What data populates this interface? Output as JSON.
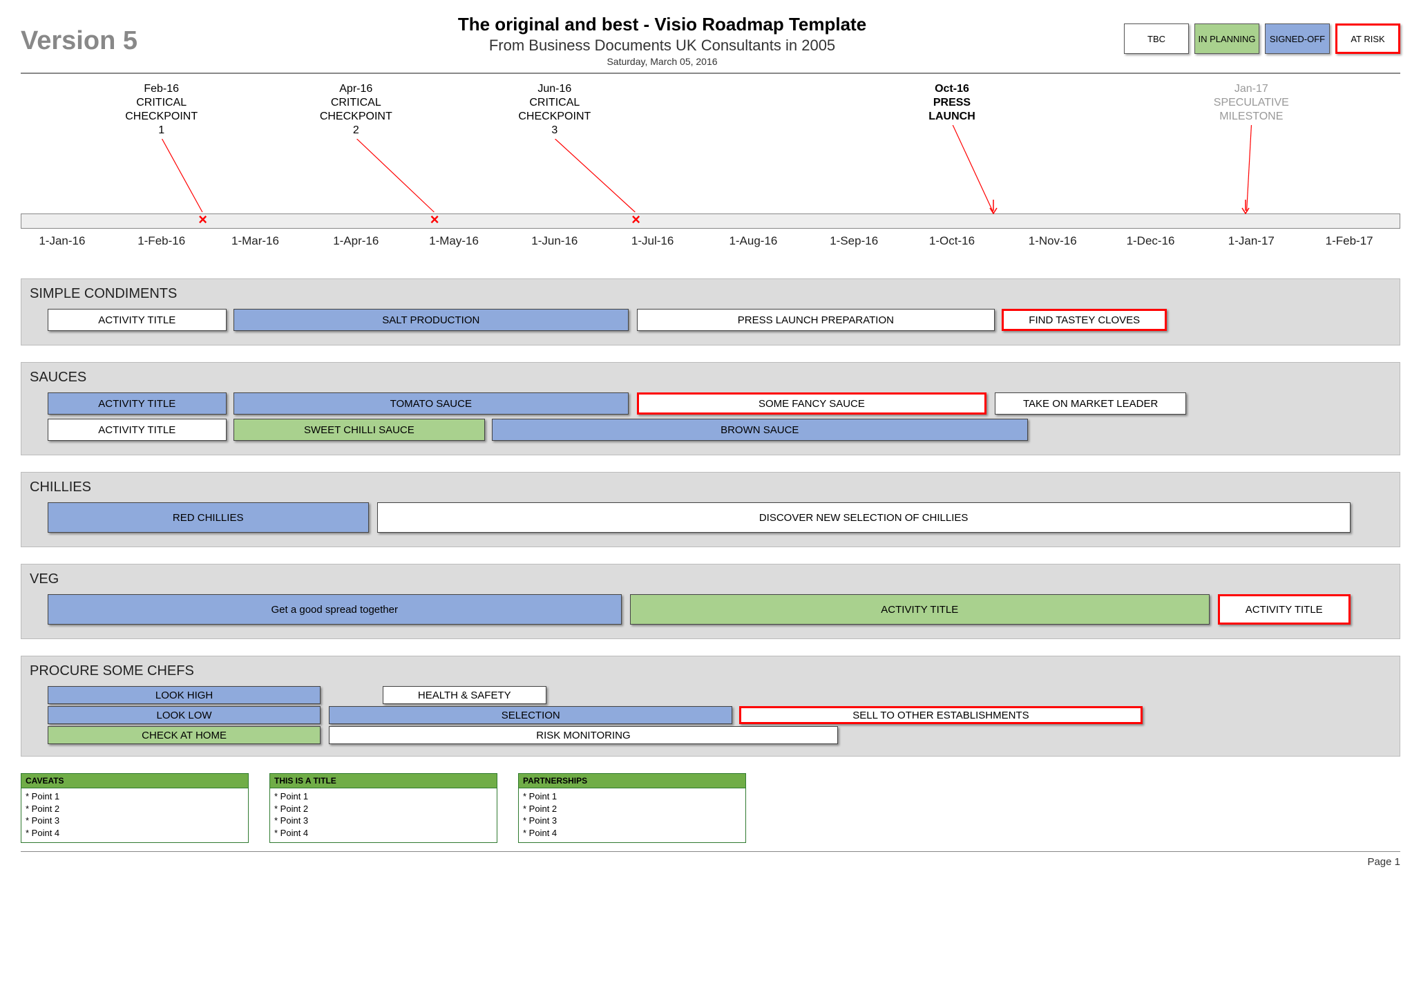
{
  "colors": {
    "tbc_bg": "#ffffff",
    "planning_bg": "#a9d18e",
    "signed_bg": "#8faadc",
    "risk_border": "#ff0000",
    "swim_bg": "#dcdcdc",
    "grey_text": "#888888",
    "speculative_text": "#999999",
    "footer_header_bg": "#70ad47"
  },
  "header": {
    "version": "Version 5",
    "title": "The original and best - Visio Roadmap Template",
    "subtitle": "From Business Documents UK Consultants in 2005",
    "date": "Saturday, March 05, 2016",
    "legend": [
      {
        "label": "TBC",
        "style": "tbc"
      },
      {
        "label": "IN PLANNING",
        "style": "planning"
      },
      {
        "label": "SIGNED-OFF",
        "style": "signed"
      },
      {
        "label": "AT RISK",
        "style": "risk"
      }
    ]
  },
  "timeline": {
    "start_pct": 1.5,
    "end_pct": 98.5,
    "ticks": [
      {
        "label": "1-Jan-16",
        "pct": 3.0
      },
      {
        "label": "1-Feb-16",
        "pct": 10.2
      },
      {
        "label": "1-Mar-16",
        "pct": 17.0
      },
      {
        "label": "1-Apr-16",
        "pct": 24.3
      },
      {
        "label": "1-May-16",
        "pct": 31.4
      },
      {
        "label": "1-Jun-16",
        "pct": 38.7
      },
      {
        "label": "1-Jul-16",
        "pct": 45.8
      },
      {
        "label": "1-Aug-16",
        "pct": 53.1
      },
      {
        "label": "1-Sep-16",
        "pct": 60.4
      },
      {
        "label": "1-Oct-16",
        "pct": 67.5
      },
      {
        "label": "1-Nov-16",
        "pct": 74.8
      },
      {
        "label": "1-Dec-16",
        "pct": 81.9
      },
      {
        "label": "1-Jan-17",
        "pct": 89.2
      },
      {
        "label": "1-Feb-17",
        "pct": 96.3
      }
    ],
    "milestones": [
      {
        "lines": [
          "Feb-16",
          "CRITICAL",
          "CHECKPOINT",
          "1"
        ],
        "pct": 10.2,
        "marker_pct": 13.2,
        "marker": "x",
        "style": "normal"
      },
      {
        "lines": [
          "Apr-16",
          "CRITICAL",
          "CHECKPOINT",
          "2"
        ],
        "pct": 24.3,
        "marker_pct": 30.0,
        "marker": "x",
        "style": "normal"
      },
      {
        "lines": [
          "Jun-16",
          "CRITICAL",
          "CHECKPOINT",
          "3"
        ],
        "pct": 38.7,
        "marker_pct": 44.6,
        "marker": "x",
        "style": "normal"
      },
      {
        "lines": [
          "Oct-16",
          "PRESS",
          "LAUNCH"
        ],
        "pct": 67.5,
        "marker_pct": 70.5,
        "marker": "arrow",
        "style": "bold"
      },
      {
        "lines": [
          "Jan-17",
          "SPECULATIVE",
          "MILESTONE"
        ],
        "pct": 89.2,
        "marker_pct": 88.8,
        "marker": "arrow",
        "style": "grey"
      }
    ]
  },
  "swimlanes": [
    {
      "title": "SIMPLE CONDIMENTS",
      "rows": [
        {
          "height": "normal",
          "bars": [
            {
              "label": "ACTIVITY TITLE",
              "start": 1.5,
              "end": 14.6,
              "style": "tbc"
            },
            {
              "label": "SALT PRODUCTION",
              "start": 15.1,
              "end": 44.0,
              "style": "signed"
            },
            {
              "label": "PRESS LAUNCH PREPARATION",
              "start": 44.6,
              "end": 70.8,
              "style": "tbc"
            },
            {
              "label": "FIND TASTEY CLOVES",
              "start": 71.3,
              "end": 83.4,
              "style": "risk"
            }
          ]
        }
      ]
    },
    {
      "title": "SAUCES",
      "rows": [
        {
          "height": "normal",
          "bars": [
            {
              "label": "ACTIVITY TITLE",
              "start": 1.5,
              "end": 14.6,
              "style": "signed"
            },
            {
              "label": "TOMATO SAUCE",
              "start": 15.1,
              "end": 44.0,
              "style": "signed"
            },
            {
              "label": "SOME FANCY SAUCE",
              "start": 44.6,
              "end": 70.2,
              "style": "risk"
            },
            {
              "label": "TAKE ON MARKET LEADER",
              "start": 70.8,
              "end": 84.8,
              "style": "tbc"
            }
          ]
        },
        {
          "height": "normal",
          "bars": [
            {
              "label": "ACTIVITY TITLE",
              "start": 1.5,
              "end": 14.6,
              "style": "tbc"
            },
            {
              "label": "SWEET CHILLI SAUCE",
              "start": 15.1,
              "end": 33.5,
              "style": "planning"
            },
            {
              "label": "BROWN SAUCE",
              "start": 34.0,
              "end": 73.2,
              "style": "signed"
            }
          ]
        }
      ]
    },
    {
      "title": "CHILLIES",
      "rows": [
        {
          "height": "tall",
          "bars": [
            {
              "label": "RED CHILLIES",
              "start": 1.5,
              "end": 25.0,
              "style": "signed"
            },
            {
              "label": "DISCOVER NEW SELECTION OF CHILLIES",
              "start": 25.6,
              "end": 96.8,
              "style": "tbc"
            }
          ]
        }
      ]
    },
    {
      "title": "VEG",
      "rows": [
        {
          "height": "tall",
          "bars": [
            {
              "label": "Get a good spread together",
              "start": 1.5,
              "end": 43.5,
              "style": "signed"
            },
            {
              "label": "ACTIVITY TITLE",
              "start": 44.1,
              "end": 86.5,
              "style": "planning"
            },
            {
              "label": "ACTIVITY TITLE",
              "start": 87.1,
              "end": 96.8,
              "style": "risk"
            }
          ]
        }
      ]
    },
    {
      "title": "PROCURE SOME CHEFS",
      "rows": [
        {
          "height": "short",
          "bars": [
            {
              "label": "LOOK HIGH",
              "start": 1.5,
              "end": 21.5,
              "style": "signed"
            },
            {
              "label": "HEALTH & SAFETY",
              "start": 26.0,
              "end": 38.0,
              "style": "tbc"
            }
          ]
        },
        {
          "height": "short",
          "bars": [
            {
              "label": "LOOK LOW",
              "start": 1.5,
              "end": 21.5,
              "style": "signed"
            },
            {
              "label": "SELECTION",
              "start": 22.1,
              "end": 51.6,
              "style": "signed"
            },
            {
              "label": "SELL TO OTHER ESTABLISHMENTS",
              "start": 52.1,
              "end": 81.6,
              "style": "risk"
            }
          ]
        },
        {
          "height": "short",
          "bars": [
            {
              "label": "CHECK AT HOME",
              "start": 1.5,
              "end": 21.5,
              "style": "planning"
            },
            {
              "label": "RISK MONITORING",
              "start": 22.1,
              "end": 59.3,
              "style": "tbc"
            }
          ]
        }
      ]
    }
  ],
  "footer_boxes": [
    {
      "title": "CAVEATS",
      "points": [
        "* Point 1",
        "* Point 2",
        "* Point 3",
        "* Point 4"
      ]
    },
    {
      "title": "THIS IS A TITLE",
      "points": [
        "* Point 1",
        "* Point 2",
        "* Point 3",
        "* Point 4"
      ]
    },
    {
      "title": "PARTNERSHIPS",
      "points": [
        "* Point 1",
        "* Point 2",
        "* Point 3",
        "* Point 4"
      ]
    }
  ],
  "page_label": "Page 1"
}
